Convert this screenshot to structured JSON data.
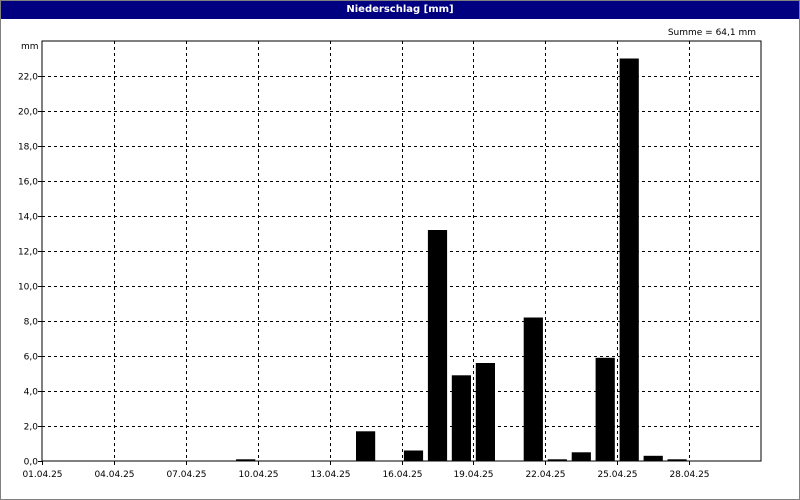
{
  "window": {
    "title": "Niederschlag [mm]"
  },
  "chart_data": {
    "type": "bar",
    "title": "Niederschlag [mm]",
    "ylabel": "mm",
    "xlabel": "",
    "annotation": "Summe = 64,1 mm",
    "ylim": [
      0,
      24
    ],
    "yticks": [
      "0,0",
      "2,0",
      "4,0",
      "6,0",
      "8,0",
      "10,0",
      "12,0",
      "14,0",
      "16,0",
      "18,0",
      "20,0",
      "22,0"
    ],
    "xticks": [
      "01.04.25",
      "04.04.25",
      "07.04.25",
      "10.04.25",
      "13.04.25",
      "16.04.25",
      "19.04.25",
      "22.04.25",
      "25.04.25",
      "28.04.25"
    ],
    "xrange_days": [
      1,
      31
    ],
    "grid": true,
    "bar_color": "#000000",
    "categories": [
      "01.04.25",
      "02.04.25",
      "03.04.25",
      "04.04.25",
      "05.04.25",
      "06.04.25",
      "07.04.25",
      "08.04.25",
      "09.04.25",
      "10.04.25",
      "11.04.25",
      "12.04.25",
      "13.04.25",
      "14.04.25",
      "15.04.25",
      "16.04.25",
      "17.04.25",
      "18.04.25",
      "19.04.25",
      "20.04.25",
      "21.04.25",
      "22.04.25",
      "23.04.25",
      "24.04.25",
      "25.04.25",
      "26.04.25",
      "27.04.25",
      "28.04.25",
      "29.04.25",
      "30.04.25"
    ],
    "values": [
      0,
      0,
      0,
      0,
      0,
      0,
      0,
      0,
      0.1,
      0,
      0,
      0,
      0,
      1.7,
      0,
      0.6,
      13.2,
      4.9,
      5.6,
      0,
      8.2,
      0.1,
      0.5,
      5.9,
      23.0,
      0.3,
      0.1,
      0,
      0,
      0
    ]
  }
}
